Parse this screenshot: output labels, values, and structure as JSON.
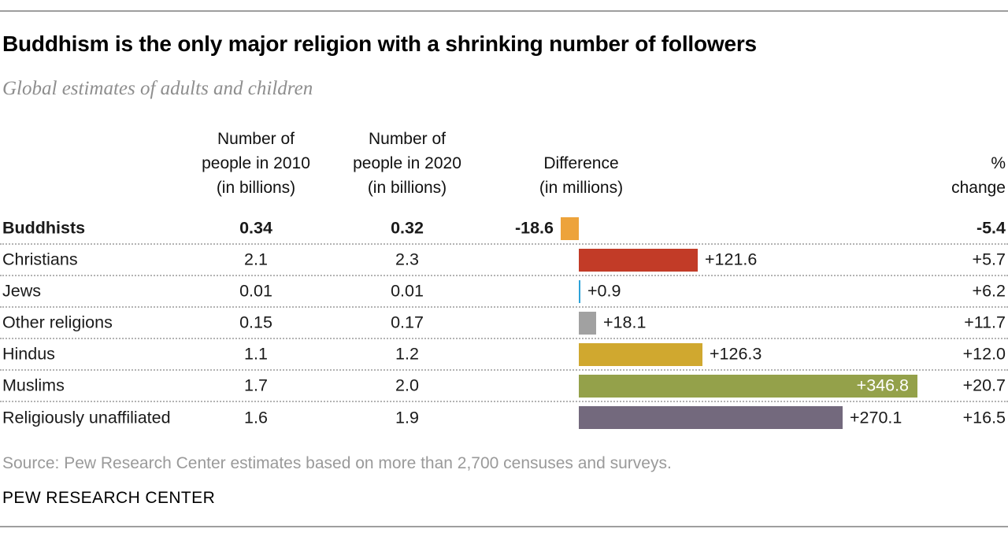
{
  "title": "Buddhism is the only major religion with a shrinking number of followers",
  "subtitle": "Global estimates of adults and children",
  "headers": {
    "col2010_lines": [
      "Number of",
      "people in 2010",
      "(in billions)"
    ],
    "col2020_lines": [
      "Number of",
      "people in 2020",
      "(in billions)"
    ],
    "diff_lines": [
      "Difference",
      "(in millions)"
    ],
    "pct_lines": [
      "%",
      "change"
    ]
  },
  "chart_data": {
    "type": "bar",
    "orientation": "horizontal",
    "title": "Buddhism is the only major religion with a shrinking number of followers",
    "subtitle": "Global estimates of adults and children",
    "categories": [
      "Buddhists",
      "Christians",
      "Jews",
      "Other religions",
      "Hindus",
      "Muslims",
      "Religiously unaffiliated"
    ],
    "series": [
      {
        "name": "Number of people in 2010 (in billions)",
        "values": [
          0.34,
          2.1,
          0.01,
          0.15,
          1.1,
          1.7,
          1.6
        ]
      },
      {
        "name": "Number of people in 2020 (in billions)",
        "values": [
          0.32,
          2.3,
          0.01,
          0.17,
          1.2,
          2.0,
          1.9
        ]
      },
      {
        "name": "Difference (in millions)",
        "values": [
          -18.6,
          121.6,
          0.9,
          18.1,
          126.3,
          346.8,
          270.1
        ]
      },
      {
        "name": "% change",
        "values": [
          -5.4,
          5.7,
          6.2,
          11.7,
          12.0,
          20.7,
          16.5
        ]
      }
    ],
    "bar_colors": [
      "#eda33b",
      "#c23b27",
      "#2da2d8",
      "#a1a1a1",
      "#d0a82f",
      "#94a14a",
      "#73697d"
    ],
    "axis": {
      "zero_baseline": true,
      "grid": false,
      "legend": "none"
    }
  },
  "rows": [
    {
      "label": "Buddhists",
      "v2010": "0.34",
      "v2020": "0.32",
      "diff": -18.6,
      "diff_label": "-18.6",
      "pct": "-5.4",
      "color": "#eda33b",
      "bold": true,
      "diff_label_pos": "left"
    },
    {
      "label": "Christians",
      "v2010": "2.1",
      "v2020": "2.3",
      "diff": 121.6,
      "diff_label": "+121.6",
      "pct": "+5.7",
      "color": "#c23b27",
      "bold": false,
      "diff_label_pos": "right"
    },
    {
      "label": "Jews",
      "v2010": "0.01",
      "v2020": "0.01",
      "diff": 0.9,
      "diff_label": "+0.9",
      "pct": "+6.2",
      "color": "#2da2d8",
      "bold": false,
      "diff_label_pos": "right"
    },
    {
      "label": "Other religions",
      "v2010": "0.15",
      "v2020": "0.17",
      "diff": 18.1,
      "diff_label": "+18.1",
      "pct": "+11.7",
      "color": "#a1a1a1",
      "bold": false,
      "diff_label_pos": "right"
    },
    {
      "label": "Hindus",
      "v2010": "1.1",
      "v2020": "1.2",
      "diff": 126.3,
      "diff_label": "+126.3",
      "pct": "+12.0",
      "color": "#d0a82f",
      "bold": false,
      "diff_label_pos": "right"
    },
    {
      "label": "Muslims",
      "v2010": "1.7",
      "v2020": "2.0",
      "diff": 346.8,
      "diff_label": "+346.8",
      "pct": "+20.7",
      "color": "#94a14a",
      "bold": false,
      "diff_label_pos": "inside"
    },
    {
      "label": "Religiously unaffiliated",
      "v2010": "1.6",
      "v2020": "1.9",
      "diff": 270.1,
      "diff_label": "+270.1",
      "pct": "+16.5",
      "color": "#73697d",
      "bold": false,
      "diff_label_pos": "right"
    }
  ],
  "source": "Source: Pew Research Center estimates based on more than 2,700 censuses and surveys.",
  "footer": "PEW RESEARCH CENTER",
  "colors": {
    "rule": "#9e9e9e",
    "separator_dotted": "#b3b3b3",
    "subtitle_text": "#8e8e8e",
    "source_text": "#9a9a9a"
  }
}
